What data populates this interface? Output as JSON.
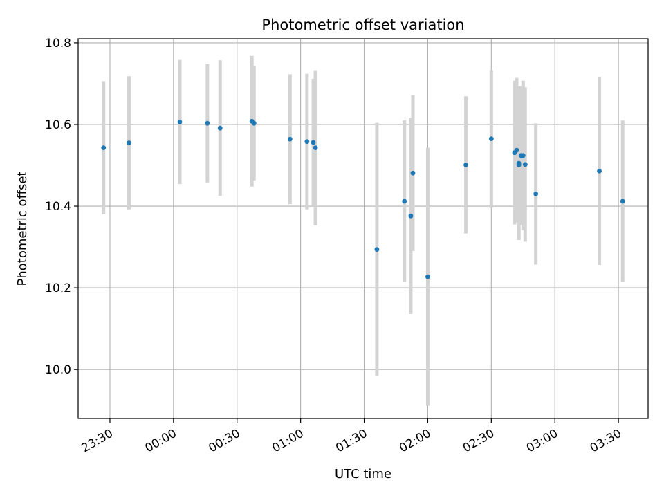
{
  "chart_data": {
    "type": "scatter",
    "title": "Photometric offset variation",
    "xlabel": "UTC time",
    "ylabel": "Photometric offset",
    "x_tick_labels": [
      "23:30",
      "00:00",
      "00:30",
      "01:00",
      "01:30",
      "02:00",
      "02:30",
      "03:00",
      "03:30"
    ],
    "y_tick_labels": [
      "10.0",
      "10.2",
      "10.4",
      "10.6",
      "10.8"
    ],
    "xlim": [
      "23:15",
      "03:44"
    ],
    "ylim": [
      9.88,
      10.81
    ],
    "grid": true,
    "legend": "none",
    "colors": {
      "points": "#1f77b4",
      "errorbars": "#d3d3d3",
      "grid": "#b0b0b0",
      "axes": "#000000"
    },
    "series": [
      {
        "points": [
          {
            "x": "23:27",
            "y": 10.543,
            "err": 0.163
          },
          {
            "x": "23:39",
            "y": 10.555,
            "err": 0.163
          },
          {
            "x": "00:03",
            "y": 10.606,
            "err": 0.152
          },
          {
            "x": "00:16",
            "y": 10.603,
            "err": 0.145
          },
          {
            "x": "00:22",
            "y": 10.591,
            "err": 0.166
          },
          {
            "x": "00:37",
            "y": 10.608,
            "err": 0.16
          },
          {
            "x": "00:38",
            "y": 10.603,
            "err": 0.14
          },
          {
            "x": "00:55",
            "y": 10.564,
            "err": 0.159
          },
          {
            "x": "01:03",
            "y": 10.558,
            "err": 0.166
          },
          {
            "x": "01:06",
            "y": 10.556,
            "err": 0.156
          },
          {
            "x": "01:07",
            "y": 10.543,
            "err": 0.19
          },
          {
            "x": "01:36",
            "y": 10.294,
            "err": 0.31
          },
          {
            "x": "01:49",
            "y": 10.412,
            "err": 0.198
          },
          {
            "x": "01:52",
            "y": 10.376,
            "err": 0.24
          },
          {
            "x": "01:53",
            "y": 10.481,
            "err": 0.191
          },
          {
            "x": "02:00",
            "y": 10.227,
            "err": 0.316
          },
          {
            "x": "02:18",
            "y": 10.501,
            "err": 0.168
          },
          {
            "x": "02:30",
            "y": 10.565,
            "err": 0.168
          },
          {
            "x": "02:41",
            "y": 10.531,
            "err": 0.176
          },
          {
            "x": "02:42",
            "y": 10.537,
            "err": 0.177
          },
          {
            "x": "02:43",
            "y": 10.505,
            "err": 0.188
          },
          {
            "x": "02:43",
            "y": 10.501,
            "err": 0.18
          },
          {
            "x": "02:44",
            "y": 10.524,
            "err": 0.17
          },
          {
            "x": "02:45",
            "y": 10.524,
            "err": 0.183
          },
          {
            "x": "02:46",
            "y": 10.502,
            "err": 0.189
          },
          {
            "x": "02:51",
            "y": 10.43,
            "err": 0.173
          },
          {
            "x": "03:21",
            "y": 10.486,
            "err": 0.23
          },
          {
            "x": "03:32",
            "y": 10.412,
            "err": 0.198
          }
        ]
      }
    ]
  }
}
